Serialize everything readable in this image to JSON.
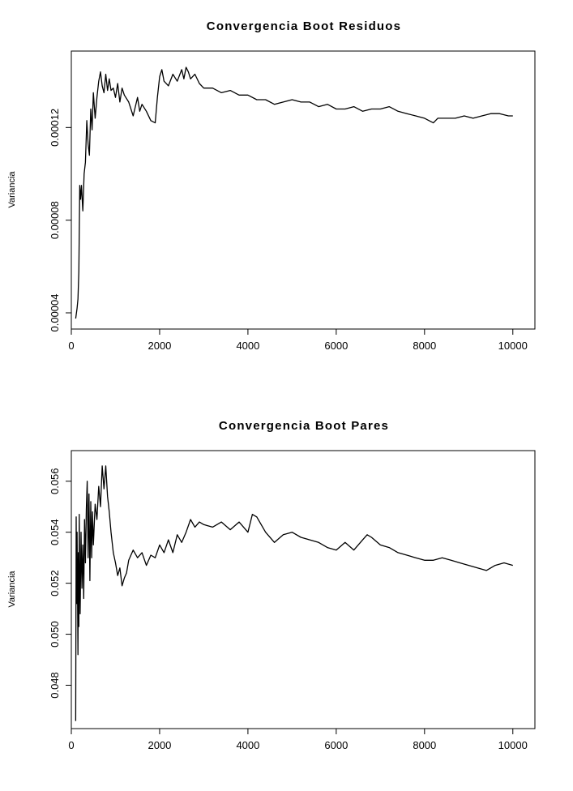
{
  "chart_data": [
    {
      "type": "line",
      "title": "Convergencia Boot Residuos",
      "xlabel": "",
      "ylabel": "Variancia",
      "xlim": [
        0,
        10500
      ],
      "ylim": [
        3.3e-05,
        0.000153
      ],
      "xticks": [
        0,
        2000,
        4000,
        6000,
        8000,
        10000
      ],
      "xtick_labels": [
        "0",
        "2000",
        "4000",
        "6000",
        "8000",
        "10000"
      ],
      "yticks": [
        4e-05,
        8e-05,
        0.00012
      ],
      "ytick_labels": [
        "0.00004",
        "0.00008",
        "0.00012"
      ],
      "grid": false,
      "series": [
        {
          "x": [
            100,
            130,
            150,
            170,
            190,
            210,
            230,
            260,
            290,
            320,
            350,
            380,
            410,
            440,
            470,
            500,
            540,
            580,
            620,
            660,
            700,
            740,
            780,
            820,
            860,
            900,
            950,
            1000,
            1050,
            1100,
            1150,
            1200,
            1300,
            1400,
            1500,
            1550,
            1600,
            1700,
            1800,
            1900,
            1950,
            2000,
            2050,
            2100,
            2200,
            2300,
            2400,
            2500,
            2550,
            2600,
            2650,
            2700,
            2800,
            2900,
            3000,
            3200,
            3400,
            3600,
            3800,
            4000,
            4200,
            4400,
            4600,
            4800,
            5000,
            5200,
            5400,
            5600,
            5800,
            6000,
            6200,
            6400,
            6600,
            6800,
            7000,
            7200,
            7400,
            7600,
            7800,
            8000,
            8100,
            8200,
            8300,
            8500,
            8700,
            8900,
            9100,
            9300,
            9500,
            9700,
            9900,
            10000
          ],
          "values": [
            3.75e-05,
            4.2e-05,
            4.6e-05,
            5.8e-05,
            9.5e-05,
            8.9e-05,
            9.5e-05,
            8.4e-05,
            0.0001,
            0.000105,
            0.000123,
            0.000113,
            0.000108,
            0.000128,
            0.000119,
            0.000135,
            0.000124,
            0.000133,
            0.00014,
            0.000144,
            0.000138,
            0.000135,
            0.000143,
            0.000136,
            0.000141,
            0.000136,
            0.000137,
            0.000133,
            0.000139,
            0.000131,
            0.000137,
            0.000134,
            0.000131,
            0.000125,
            0.000133,
            0.000127,
            0.00013,
            0.000127,
            0.000123,
            0.000122,
            0.000133,
            0.000142,
            0.000145,
            0.00014,
            0.000138,
            0.000143,
            0.00014,
            0.000145,
            0.000141,
            0.000146,
            0.000144,
            0.000141,
            0.000143,
            0.000139,
            0.000137,
            0.000137,
            0.000135,
            0.000136,
            0.000134,
            0.000134,
            0.000132,
            0.000132,
            0.00013,
            0.000131,
            0.000132,
            0.000131,
            0.000131,
            0.000129,
            0.00013,
            0.000128,
            0.000128,
            0.000129,
            0.000127,
            0.000128,
            0.000128,
            0.000129,
            0.000127,
            0.000126,
            0.000125,
            0.000124,
            0.000123,
            0.000122,
            0.000124,
            0.000124,
            0.000124,
            0.000125,
            0.000124,
            0.000125,
            0.000126,
            0.000126,
            0.000125,
            0.000125
          ]
        }
      ]
    },
    {
      "type": "line",
      "title": "Convergencia Boot Pares",
      "xlabel": "",
      "ylabel": "Variancia",
      "xlim": [
        0,
        10500
      ],
      "ylim": [
        0.0463,
        0.0572
      ],
      "xticks": [
        0,
        2000,
        4000,
        6000,
        8000,
        10000
      ],
      "xtick_labels": [
        "0",
        "2000",
        "4000",
        "6000",
        "8000",
        "10000"
      ],
      "yticks": [
        0.048,
        0.05,
        0.052,
        0.054,
        0.056
      ],
      "ytick_labels": [
        "0.048",
        "0.050",
        "0.052",
        "0.054",
        "0.056"
      ],
      "grid": false,
      "series": [
        {
          "x": [
            100,
            110,
            120,
            130,
            140,
            150,
            160,
            170,
            180,
            190,
            200,
            220,
            240,
            260,
            280,
            300,
            320,
            340,
            360,
            380,
            400,
            420,
            440,
            460,
            480,
            500,
            540,
            580,
            620,
            660,
            700,
            740,
            780,
            820,
            860,
            900,
            950,
            1000,
            1050,
            1100,
            1150,
            1200,
            1250,
            1300,
            1400,
            1500,
            1600,
            1700,
            1800,
            1900,
            2000,
            2100,
            2200,
            2300,
            2400,
            2500,
            2600,
            2700,
            2800,
            2900,
            3000,
            3200,
            3400,
            3600,
            3800,
            4000,
            4100,
            4200,
            4400,
            4600,
            4800,
            5000,
            5200,
            5400,
            5600,
            5800,
            6000,
            6200,
            6400,
            6600,
            6700,
            6800,
            7000,
            7200,
            7400,
            7600,
            7800,
            8000,
            8200,
            8400,
            8600,
            8800,
            9000,
            9200,
            9400,
            9600,
            9800,
            10000
          ],
          "values": [
            0.0466,
            0.0546,
            0.0512,
            0.054,
            0.0518,
            0.0492,
            0.0532,
            0.0503,
            0.0547,
            0.0522,
            0.0508,
            0.054,
            0.0518,
            0.0535,
            0.0514,
            0.0545,
            0.0528,
            0.0549,
            0.056,
            0.053,
            0.0555,
            0.0521,
            0.0552,
            0.053,
            0.0548,
            0.0535,
            0.0551,
            0.0545,
            0.0558,
            0.055,
            0.0566,
            0.0557,
            0.0566,
            0.0554,
            0.0548,
            0.054,
            0.0532,
            0.0528,
            0.0523,
            0.0526,
            0.0519,
            0.0522,
            0.0524,
            0.0529,
            0.0533,
            0.053,
            0.0532,
            0.0527,
            0.0531,
            0.053,
            0.0535,
            0.0532,
            0.0537,
            0.0532,
            0.0539,
            0.0536,
            0.054,
            0.0545,
            0.0542,
            0.0544,
            0.0543,
            0.0542,
            0.0544,
            0.0541,
            0.0544,
            0.054,
            0.0547,
            0.0546,
            0.054,
            0.0536,
            0.0539,
            0.054,
            0.0538,
            0.0537,
            0.0536,
            0.0534,
            0.0533,
            0.0536,
            0.0533,
            0.0537,
            0.0539,
            0.0538,
            0.0535,
            0.0534,
            0.0532,
            0.0531,
            0.053,
            0.0529,
            0.0529,
            0.053,
            0.0529,
            0.0528,
            0.0527,
            0.0526,
            0.0525,
            0.0527,
            0.0528,
            0.0527
          ]
        }
      ]
    }
  ]
}
